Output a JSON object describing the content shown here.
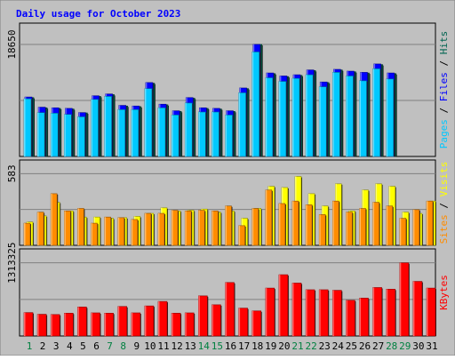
{
  "chart_data": {
    "type": "bar",
    "title": "Daily usage for October 2023",
    "categories": [
      "1",
      "2",
      "3",
      "4",
      "5",
      "6",
      "7",
      "8",
      "9",
      "10",
      "11",
      "12",
      "13",
      "14",
      "15",
      "16",
      "17",
      "18",
      "19",
      "20",
      "21",
      "22",
      "23",
      "24",
      "25",
      "26",
      "27",
      "28",
      "29",
      "30",
      "31"
    ],
    "weekend_days": [
      "1",
      "7",
      "8",
      "14",
      "15",
      "21",
      "22",
      "28",
      "29"
    ],
    "colors": {
      "hits": "#006450",
      "files": "#0000ff",
      "pages": "#00c8ff",
      "visits": "#ffff00",
      "sites": "#ff8c00",
      "kbytes": "#ff0000",
      "title": "#0000ff",
      "weekday_label": "#000000",
      "weekend_label": "#008040",
      "background": "#c0c0c0"
    },
    "panels": [
      {
        "id": "hits-files-pages",
        "max_label": "18650",
        "ylim": [
          0,
          18650
        ],
        "legend": [
          "Pages",
          "Files",
          "Hits"
        ],
        "series": [
          {
            "name": "Hits",
            "values": [
              9800,
              8100,
              8000,
              7900,
              7250,
              10000,
              10300,
              8400,
              8300,
              12200,
              8600,
              7500,
              9700,
              8000,
              7900,
              7500,
              11300,
              18650,
              13800,
              13300,
              13500,
              14300,
              12300,
              14400,
              14100,
              13900,
              15300,
              13800,
              null,
              null,
              null
            ]
          },
          {
            "name": "Files",
            "values": [
              9900,
              8200,
              8100,
              8000,
              7300,
              10100,
              10400,
              8500,
              8400,
              12300,
              8700,
              7600,
              9800,
              8100,
              8000,
              7600,
              11400,
              18650,
              13900,
              13400,
              13600,
              14400,
              12400,
              14500,
              14200,
              14000,
              15400,
              13900,
              null,
              null,
              null
            ]
          },
          {
            "name": "Pages",
            "values": [
              9600,
              7300,
              7200,
              7000,
              6600,
              9500,
              10000,
              7800,
              7800,
              11300,
              8100,
              6900,
              8900,
              7400,
              7400,
              6900,
              10600,
              17400,
              13100,
              12500,
              13000,
              13600,
              11600,
              14000,
              13400,
              12600,
              14600,
              12900,
              null,
              null,
              null
            ]
          }
        ]
      },
      {
        "id": "visits-sites",
        "max_label": "583",
        "ylim": [
          0,
          583
        ],
        "legend": [
          "Sites",
          "Visits"
        ],
        "series": [
          {
            "name": "Visits",
            "values": [
              190,
              240,
              350,
              280,
              230,
              230,
              220,
              225,
              235,
              260,
              305,
              280,
              285,
              295,
              270,
              280,
              220,
              300,
              480,
              470,
              560,
              420,
              320,
              500,
              280,
              450,
              500,
              480,
              270,
              260,
              360
            ]
          },
          {
            "name": "Sites",
            "values": [
              180,
              270,
              420,
              280,
              300,
              180,
              230,
              225,
              210,
              260,
              260,
              285,
              280,
              285,
              280,
              320,
              160,
              300,
              450,
              340,
              360,
              330,
              250,
              360,
              270,
              300,
              350,
              320,
              220,
              290,
              360
            ]
          }
        ]
      },
      {
        "id": "kbytes",
        "max_label": "1313325",
        "ylim": [
          0,
          1313325
        ],
        "legend": [
          "KBytes"
        ],
        "series": [
          {
            "name": "KBytes",
            "values": [
              420000,
              390000,
              385000,
              410000,
              520000,
              415000,
              410000,
              530000,
              415000,
              540000,
              620000,
              410000,
              415000,
              720000,
              560000,
              960000,
              500000,
              450000,
              860000,
              1100000,
              950000,
              830000,
              830000,
              820000,
              640000,
              680000,
              870000,
              840000,
              1313325,
              980000,
              860000
            ]
          }
        ]
      }
    ]
  }
}
